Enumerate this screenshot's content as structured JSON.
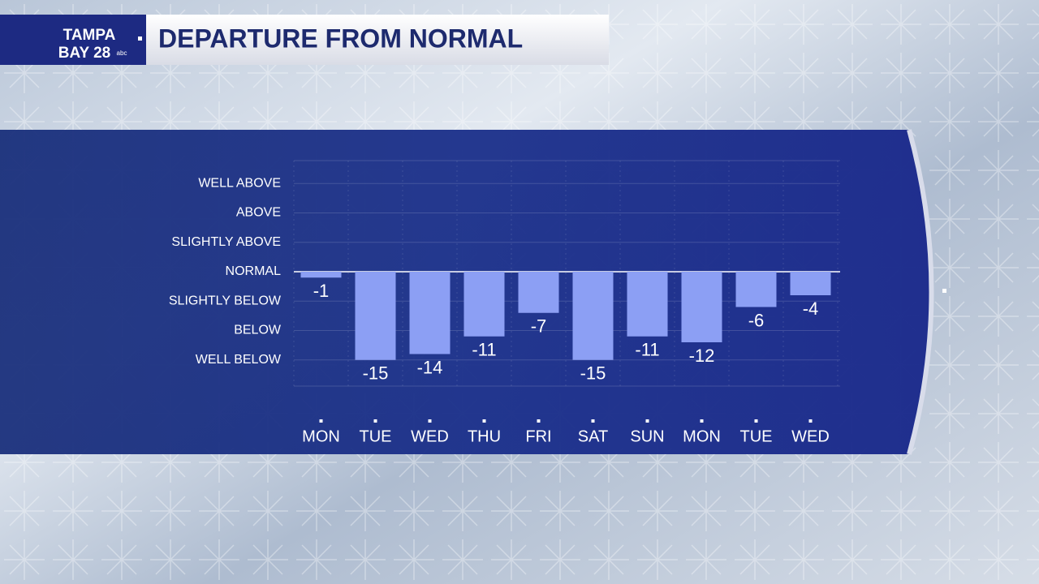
{
  "branding": {
    "line1": "TAMPA",
    "line2": "BAY 28",
    "network": "abc"
  },
  "chart_data": {
    "type": "bar",
    "title": "DEPARTURE FROM NORMAL",
    "categories": [
      "MON",
      "TUE",
      "WED",
      "THU",
      "FRI",
      "SAT",
      "SUN",
      "MON",
      "TUE",
      "WED"
    ],
    "values": [
      -1,
      -15,
      -14,
      -11,
      -7,
      -15,
      -11,
      -12,
      -6,
      -4
    ],
    "color": "#8c9ff4",
    "ylim": [
      -20,
      20
    ],
    "yticks": [
      {
        "value": -15,
        "label": "WELL BELOW"
      },
      {
        "value": -10,
        "label": "BELOW"
      },
      {
        "value": -5,
        "label": "SLIGHTLY BELOW"
      },
      {
        "value": 0,
        "label": "NORMAL"
      },
      {
        "value": 5,
        "label": "SLIGHTLY ABOVE"
      },
      {
        "value": 10,
        "label": "ABOVE"
      },
      {
        "value": 15,
        "label": "WELL ABOVE"
      }
    ],
    "grid": true
  }
}
